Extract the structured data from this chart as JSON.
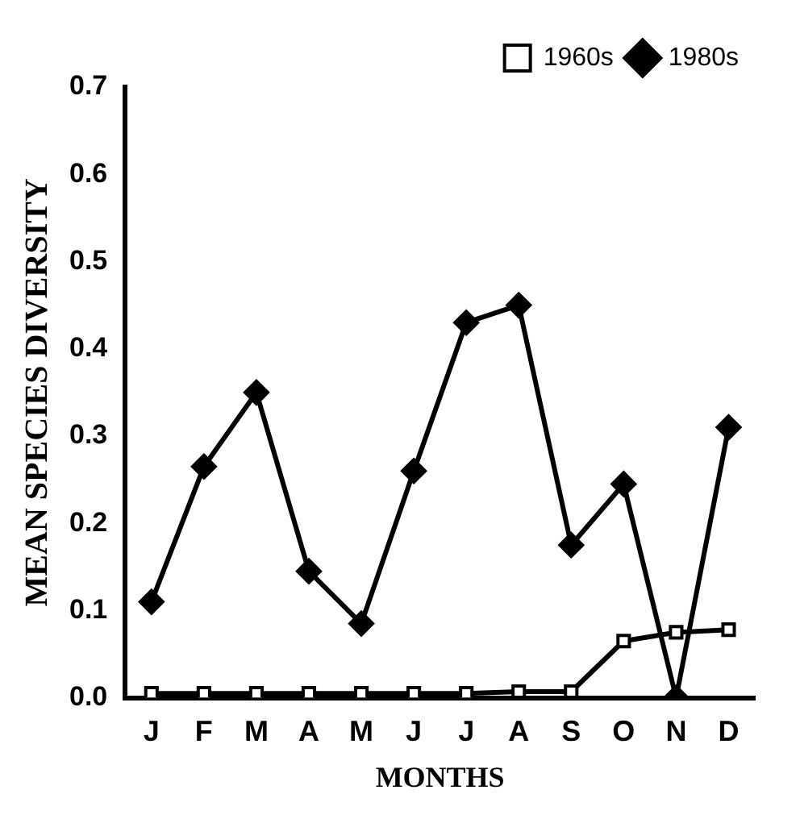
{
  "chart_data": {
    "type": "line",
    "xlabel": "MONTHS",
    "ylabel": "MEAN SPECIES DIVERSITY",
    "categories": [
      "J",
      "F",
      "M",
      "A",
      "M",
      "J",
      "J",
      "A",
      "S",
      "O",
      "N",
      "D"
    ],
    "series": [
      {
        "name": "1960s",
        "color": "#000000",
        "marker": "square",
        "values": [
          0.005,
          0.005,
          0.005,
          0.005,
          0.005,
          0.005,
          0.005,
          0.007,
          0.007,
          0.065,
          0.075,
          0.078
        ]
      },
      {
        "name": "1980s",
        "color": "#000000",
        "marker": "diamond",
        "values": [
          0.11,
          0.265,
          0.35,
          0.145,
          0.085,
          0.26,
          0.43,
          0.45,
          0.175,
          0.245,
          0.0,
          0.31
        ]
      }
    ],
    "ylim": [
      0,
      0.7
    ],
    "yticks": [
      {
        "value": 0,
        "label": "0.0"
      },
      {
        "value": 0.1,
        "label": "0.1"
      },
      {
        "value": 0.2,
        "label": "0.2"
      },
      {
        "value": 0.3,
        "label": "0.3"
      },
      {
        "value": 0.4,
        "label": "0.4"
      },
      {
        "value": 0.5,
        "label": "0.5"
      },
      {
        "value": 0.6,
        "label": "0.6"
      },
      {
        "value": 0.7,
        "label": "0.7"
      }
    ],
    "grid": false,
    "legend": "top right",
    "line_style": "solid"
  }
}
